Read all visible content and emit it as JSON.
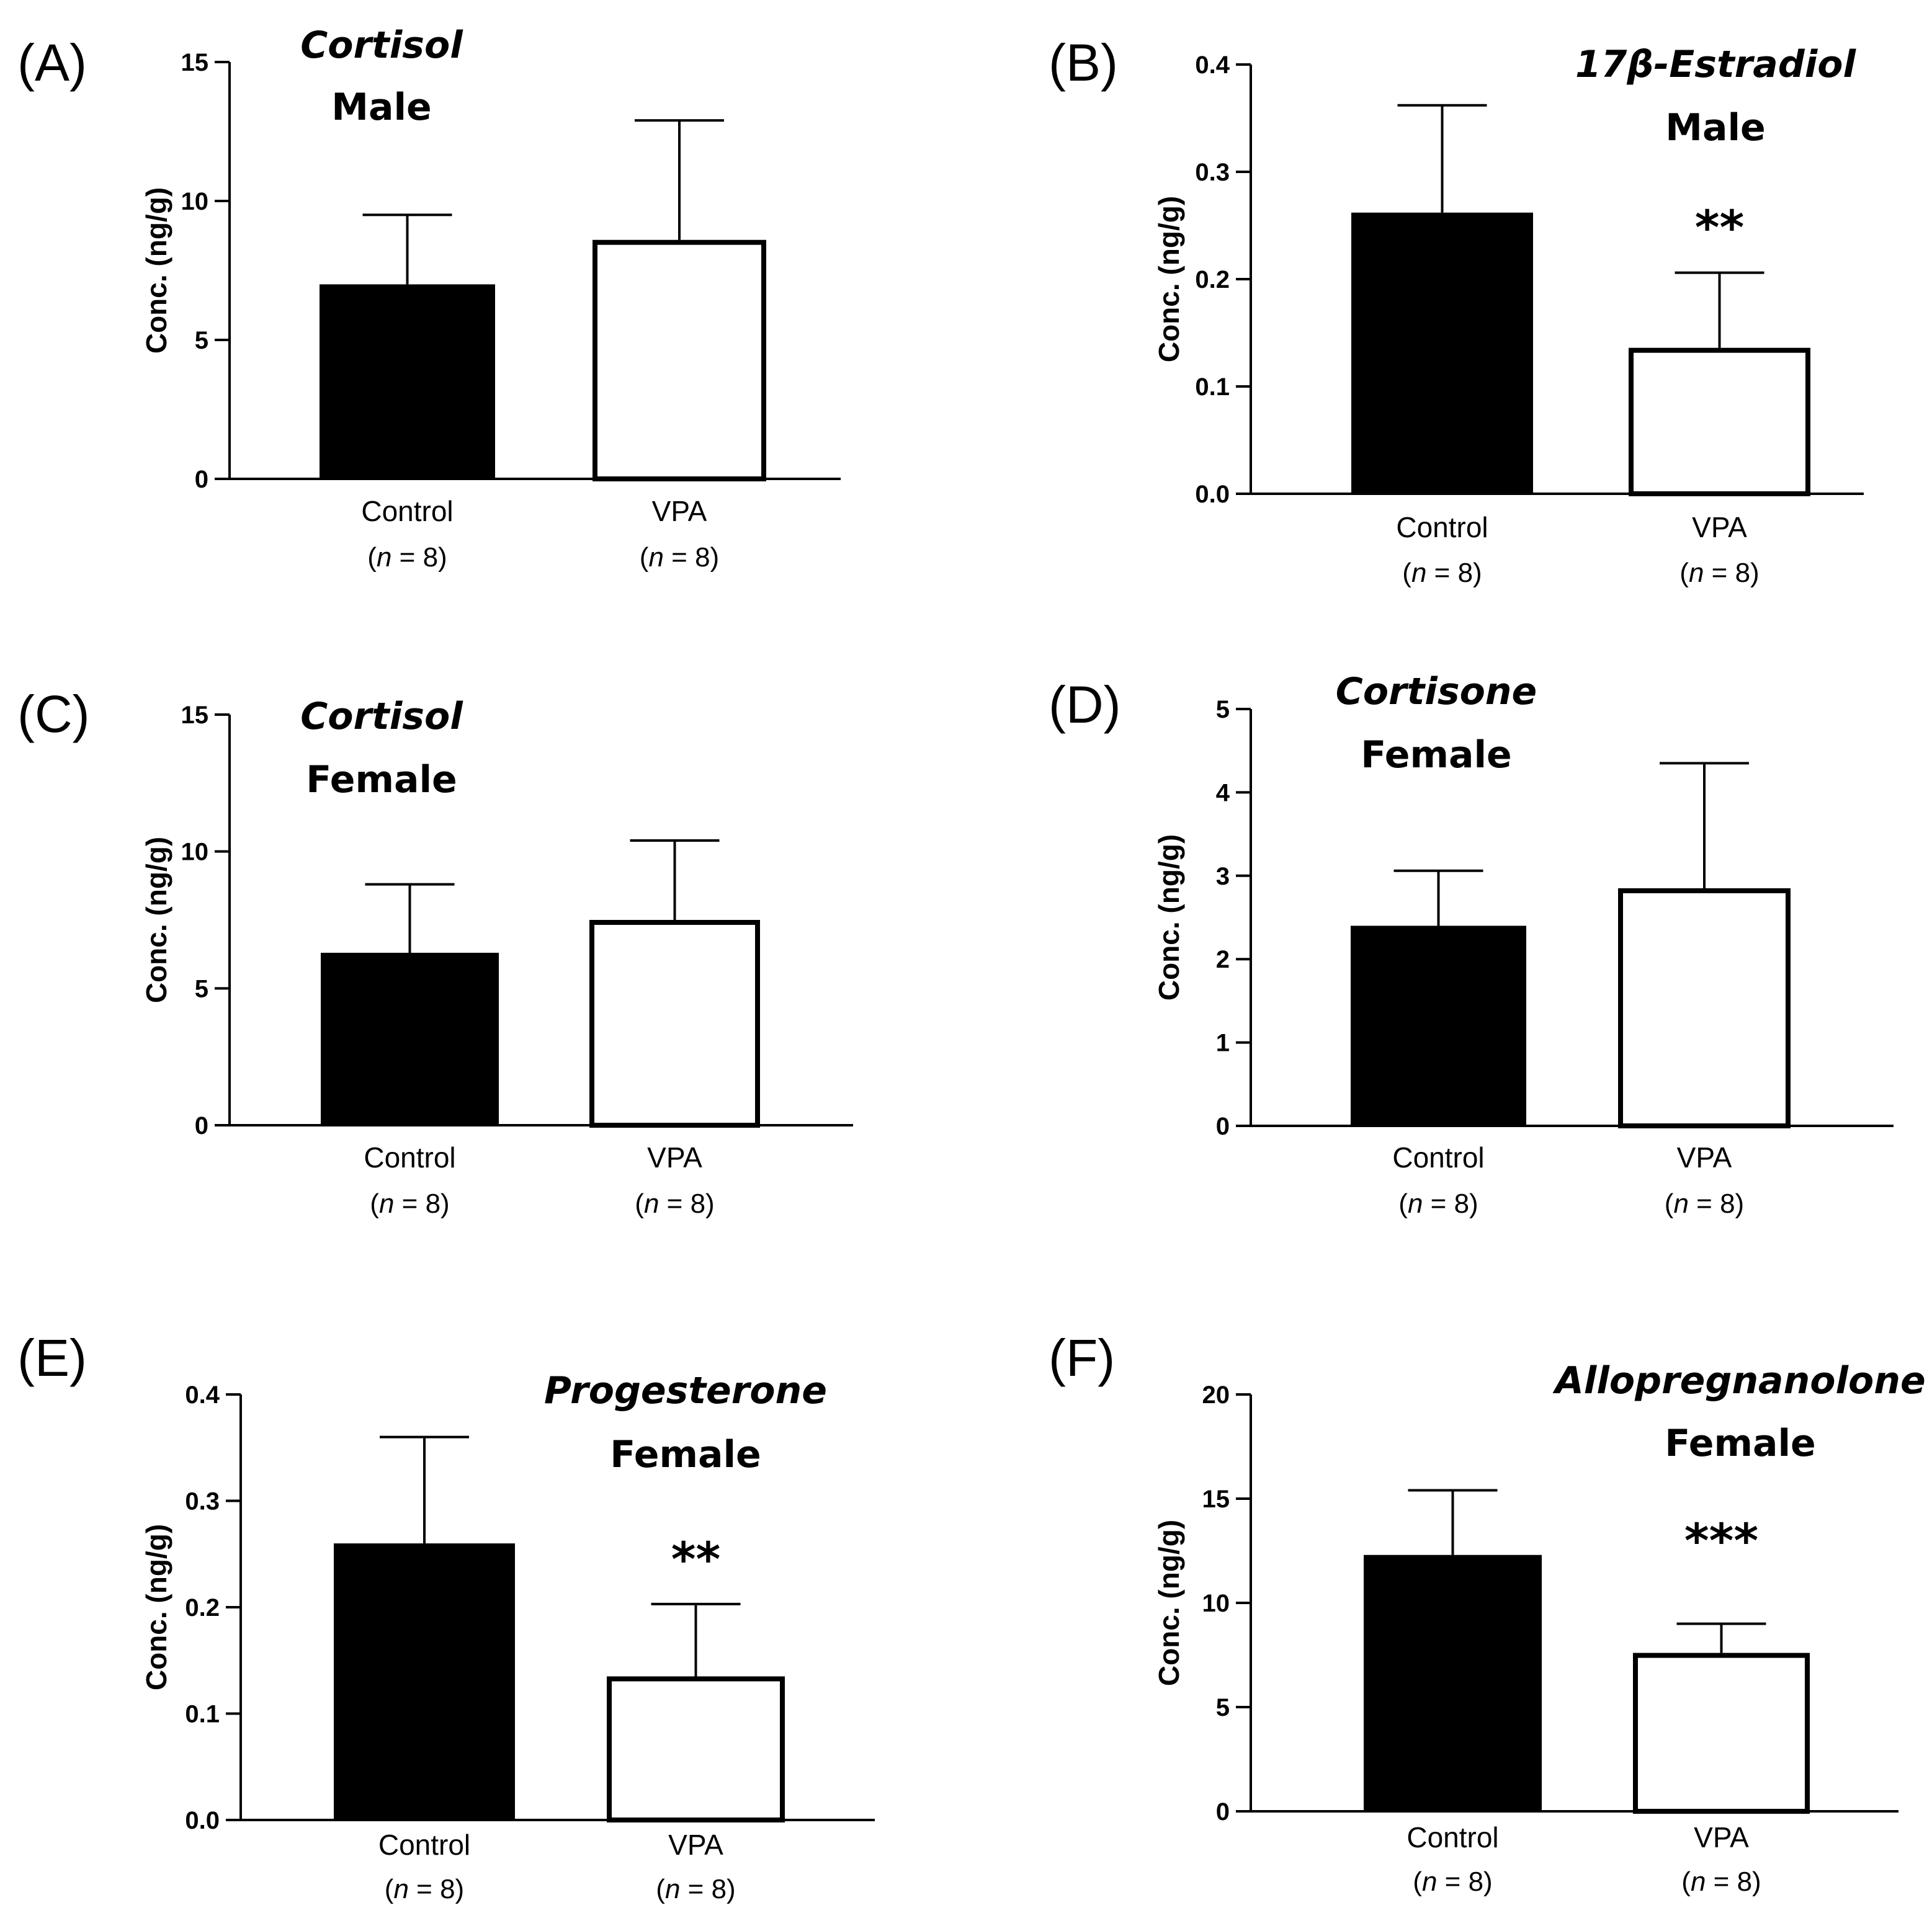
{
  "figure": {
    "n_text_prefix": "(",
    "n_text_italic": "n",
    "n_text_suffix": " = 8)"
  },
  "chart_data": [
    {
      "type": "bar",
      "panel": "(A)",
      "title": "Cortisol",
      "subtitle": "Male",
      "xlabel": "",
      "ylabel": "Conc. (ng/g)",
      "ylim": [
        0,
        15
      ],
      "yticks": [
        0,
        5,
        10,
        15
      ],
      "ytick_labels": [
        "0",
        "5",
        "10",
        "15"
      ],
      "categories": [
        "Control",
        "VPA"
      ],
      "n_labels": [
        "n = 8",
        "n = 8"
      ],
      "values": [
        7.0,
        8.6
      ],
      "errors": [
        2.5,
        4.3
      ],
      "fills": [
        "#000000",
        "#ffffff"
      ],
      "significance": "",
      "title_align": "left"
    },
    {
      "type": "bar",
      "panel": "(B)",
      "title": "17β-Estradiol",
      "subtitle": "Male",
      "xlabel": "",
      "ylabel": "Conc. (ng/g)",
      "ylim": [
        0,
        0.4
      ],
      "yticks": [
        0,
        0.1,
        0.2,
        0.3,
        0.4
      ],
      "ytick_labels": [
        "0.0",
        "0.1",
        "0.2",
        "0.3",
        "0.4"
      ],
      "categories": [
        "Control",
        "VPA"
      ],
      "n_labels": [
        "n = 8",
        "n = 8"
      ],
      "values": [
        0.262,
        0.136
      ],
      "errors": [
        0.1,
        0.07
      ],
      "fills": [
        "#000000",
        "#ffffff"
      ],
      "significance": "**",
      "title_align": "right"
    },
    {
      "type": "bar",
      "panel": "(C)",
      "title": "Cortisol",
      "subtitle": "Female",
      "xlabel": "",
      "ylabel": "Conc. (ng/g)",
      "ylim": [
        0,
        15
      ],
      "yticks": [
        0,
        5,
        10,
        15
      ],
      "ytick_labels": [
        "0",
        "5",
        "10",
        "15"
      ],
      "categories": [
        "Control",
        "VPA"
      ],
      "n_labels": [
        "n = 8",
        "n = 8"
      ],
      "values": [
        6.3,
        7.5
      ],
      "errors": [
        2.5,
        2.9
      ],
      "fills": [
        "#000000",
        "#ffffff"
      ],
      "significance": "",
      "title_align": "left"
    },
    {
      "type": "bar",
      "panel": "(D)",
      "title": "Cortisone",
      "subtitle": "Female",
      "xlabel": "",
      "ylabel": "Conc. (ng/g)",
      "ylim": [
        0,
        5
      ],
      "yticks": [
        0,
        1,
        2,
        3,
        4,
        5
      ],
      "ytick_labels": [
        "0",
        "1",
        "2",
        "3",
        "4",
        "5"
      ],
      "categories": [
        "Control",
        "VPA"
      ],
      "n_labels": [
        "n = 8",
        "n = 8"
      ],
      "values": [
        2.4,
        2.85
      ],
      "errors": [
        0.66,
        1.5
      ],
      "fills": [
        "#000000",
        "#ffffff"
      ],
      "significance": "",
      "title_align": "left"
    },
    {
      "type": "bar",
      "panel": "(E)",
      "title": "Progesterone",
      "subtitle": "Female",
      "xlabel": "",
      "ylabel": "Conc. (ng/g)",
      "ylim": [
        0,
        0.4
      ],
      "yticks": [
        0,
        0.1,
        0.2,
        0.3,
        0.4
      ],
      "ytick_labels": [
        "0.0",
        "0.1",
        "0.2",
        "0.3",
        "0.4"
      ],
      "categories": [
        "Control",
        "VPA"
      ],
      "n_labels": [
        "n = 8",
        "n = 8"
      ],
      "values": [
        0.26,
        0.135
      ],
      "errors": [
        0.1,
        0.068
      ],
      "fills": [
        "#000000",
        "#ffffff"
      ],
      "significance": "**",
      "title_align": "right"
    },
    {
      "type": "bar",
      "panel": "(F)",
      "title": "Allopregnanolone",
      "subtitle": "Female",
      "xlabel": "",
      "ylabel": "Conc. (ng/g)",
      "ylim": [
        0,
        20
      ],
      "yticks": [
        0,
        5,
        10,
        15,
        20
      ],
      "ytick_labels": [
        "0",
        "5",
        "10",
        "15",
        "20"
      ],
      "categories": [
        "Control",
        "VPA"
      ],
      "n_labels": [
        "n = 8",
        "n = 8"
      ],
      "values": [
        12.3,
        7.6
      ],
      "errors": [
        3.1,
        1.4
      ],
      "fills": [
        "#000000",
        "#ffffff"
      ],
      "significance": "***",
      "title_align": "right"
    }
  ]
}
